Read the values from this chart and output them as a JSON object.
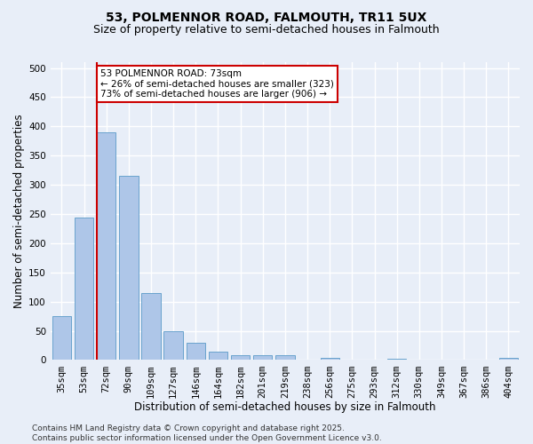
{
  "title": "53, POLMENNOR ROAD, FALMOUTH, TR11 5UX",
  "subtitle": "Size of property relative to semi-detached houses in Falmouth",
  "xlabel": "Distribution of semi-detached houses by size in Falmouth",
  "ylabel": "Number of semi-detached properties",
  "bin_labels": [
    "35sqm",
    "53sqm",
    "72sqm",
    "90sqm",
    "109sqm",
    "127sqm",
    "146sqm",
    "164sqm",
    "182sqm",
    "201sqm",
    "219sqm",
    "238sqm",
    "256sqm",
    "275sqm",
    "293sqm",
    "312sqm",
    "330sqm",
    "349sqm",
    "367sqm",
    "386sqm",
    "404sqm"
  ],
  "bar_values": [
    75,
    244,
    390,
    315,
    114,
    50,
    30,
    15,
    8,
    9,
    8,
    0,
    3,
    1,
    0,
    2,
    0,
    0,
    0,
    0,
    3
  ],
  "bar_color": "#aec6e8",
  "bar_edge_color": "#5a9ac8",
  "vline_color": "#cc0000",
  "vline_index": 2,
  "annotation_line1": "53 POLMENNOR ROAD: 73sqm",
  "annotation_line2": "← 26% of semi-detached houses are smaller (323)",
  "annotation_line3": "73% of semi-detached houses are larger (906) →",
  "annotation_box_edgecolor": "#cc0000",
  "annotation_bg_color": "#ffffff",
  "ylim_max": 510,
  "yticks": [
    0,
    50,
    100,
    150,
    200,
    250,
    300,
    350,
    400,
    450,
    500
  ],
  "footer_line1": "Contains HM Land Registry data © Crown copyright and database right 2025.",
  "footer_line2": "Contains public sector information licensed under the Open Government Licence v3.0.",
  "bg_color": "#e8eef8",
  "plot_bg_color": "#e8eef8",
  "grid_color": "#ffffff",
  "title_fontsize": 10,
  "subtitle_fontsize": 9,
  "axis_label_fontsize": 8.5,
  "tick_fontsize": 7.5,
  "annotation_fontsize": 7.5,
  "footer_fontsize": 6.5
}
